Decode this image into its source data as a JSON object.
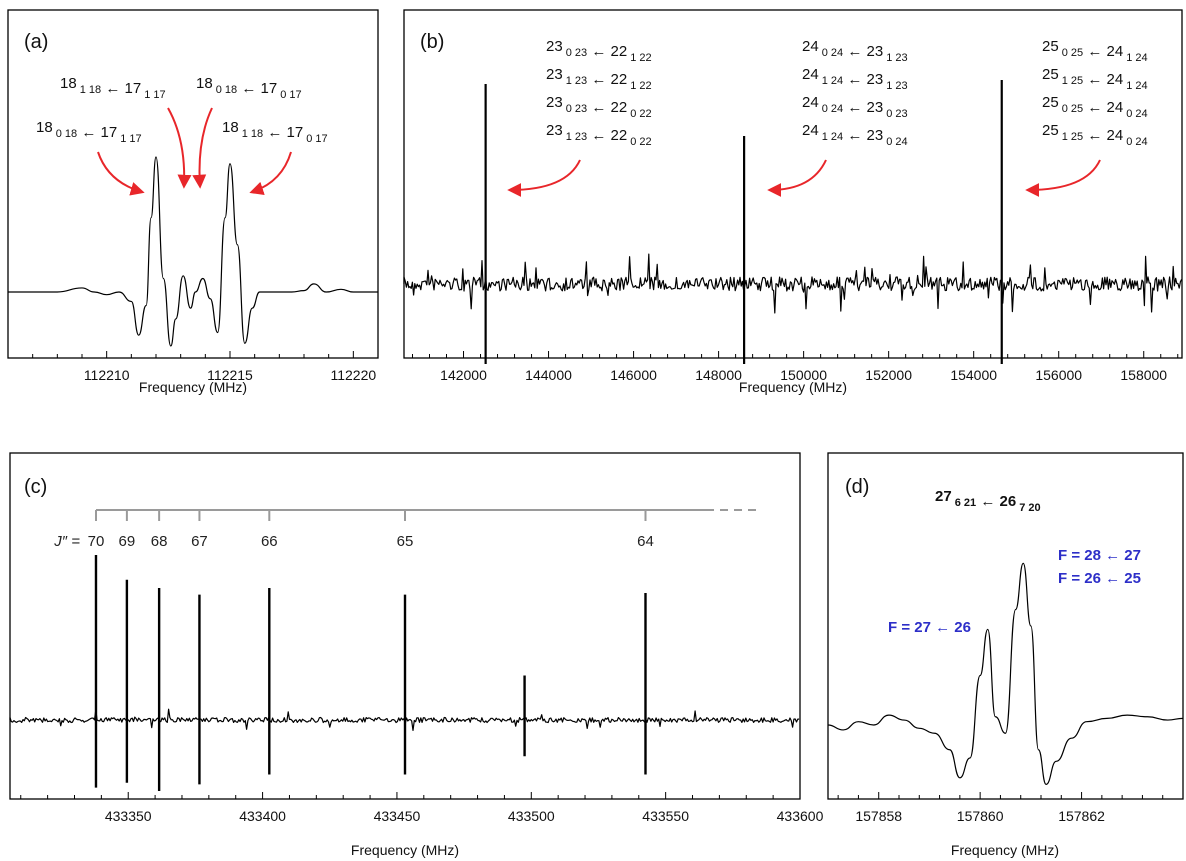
{
  "chart_data": [
    {
      "type": "line",
      "panel": "(a)",
      "xlabel": "Frequency (MHz)",
      "xlim": [
        112206,
        112221
      ],
      "xticks": [
        112210,
        112215,
        112220
      ],
      "tick_labels": [
        "112210",
        "112215",
        "112220"
      ],
      "series": [
        {
          "x": [
            112206.0,
            112208.0,
            112209.0,
            112209.5,
            112210.0,
            112210.5,
            112211.0,
            112211.3,
            112211.6,
            112211.8,
            112212.0,
            112212.3,
            112212.6,
            112212.8,
            112213.1,
            112213.4,
            112213.6,
            112213.9,
            112214.2,
            112214.5,
            112214.8,
            112215.0,
            112215.3,
            112215.6,
            112215.9,
            112216.2,
            112216.8,
            112217.5,
            112218.0,
            112218.4,
            112218.9,
            112219.5,
            112220.0,
            112221.0
          ],
          "y": [
            0.0,
            0.0,
            0.03,
            0.0,
            -0.02,
            0.0,
            -0.07,
            -0.32,
            -0.1,
            0.55,
            1.0,
            0.1,
            -0.4,
            -0.2,
            0.12,
            -0.12,
            0.0,
            0.1,
            -0.05,
            -0.3,
            0.55,
            0.95,
            0.35,
            -0.38,
            -0.12,
            0.0,
            0.0,
            0.0,
            0.01,
            0.06,
            0.0,
            0.02,
            0.0,
            0.0
          ]
        }
      ],
      "annotations": [
        {
          "lines": [
            [
              "18",
              "0 18"
            ],
            [
              "17",
              "1 17"
            ]
          ]
        },
        {
          "lines": [
            [
              "18",
              "1 18"
            ],
            [
              "17",
              "1 17"
            ]
          ]
        },
        {
          "lines": [
            [
              "18",
              "0 18"
            ],
            [
              "17",
              "0 17"
            ]
          ]
        },
        {
          "lines": [
            [
              "18",
              "1 18"
            ],
            [
              "17",
              "0 17"
            ]
          ]
        }
      ]
    },
    {
      "type": "line",
      "panel": "(b)",
      "xlabel": "Frequency (MHz)",
      "xlim": [
        140600,
        158900
      ],
      "xticks": [
        142000,
        144000,
        146000,
        148000,
        150000,
        152000,
        154000,
        156000,
        158000
      ],
      "tick_labels": [
        "142000",
        "144000",
        "146000",
        "148000",
        "150000",
        "152000",
        "154000",
        "156000",
        "158000"
      ],
      "strong_lines": [
        {
          "x": 142520,
          "up": 1.0,
          "down": -0.4
        },
        {
          "x": 148600,
          "up": 0.74,
          "down": -0.4
        },
        {
          "x": 154660,
          "up": 1.02,
          "down": -0.4
        }
      ],
      "annotation_groups": [
        {
          "lines": [
            [
              "23",
              "0 23",
              "22",
              "1 22"
            ],
            [
              "23",
              "1 23",
              "22",
              "1 22"
            ],
            [
              "23",
              "0 23",
              "22",
              "0 22"
            ],
            [
              "23",
              "1 23",
              "22",
              "0 22"
            ]
          ]
        },
        {
          "lines": [
            [
              "24",
              "0 24",
              "23",
              "1 23"
            ],
            [
              "24",
              "1 24",
              "23",
              "1 23"
            ],
            [
              "24",
              "0 24",
              "23",
              "0 23"
            ],
            [
              "24",
              "1 24",
              "23",
              "0 24"
            ]
          ]
        },
        {
          "lines": [
            [
              "25",
              "0 25",
              "24",
              "1 24"
            ],
            [
              "25",
              "1 25",
              "24",
              "1 24"
            ],
            [
              "25",
              "0 25",
              "24",
              "0 24"
            ],
            [
              "25",
              "1 25",
              "24",
              "0 24"
            ]
          ]
        }
      ]
    },
    {
      "type": "line",
      "panel": "(c)",
      "xlabel": "Frequency (MHz)",
      "xlim": [
        433306,
        433600
      ],
      "xticks": [
        433350,
        433400,
        433450,
        433500,
        433550,
        433600
      ],
      "tick_labels": [
        "433350",
        "433400",
        "433450",
        "433500",
        "433550",
        "433600"
      ],
      "j_prefix": "J″ = ",
      "ladder": [
        {
          "J": "70",
          "x": 433338.0
        },
        {
          "J": "69",
          "x": 433349.5
        },
        {
          "J": "68",
          "x": 433361.5
        },
        {
          "J": "67",
          "x": 433376.5
        },
        {
          "J": "66",
          "x": 433402.5
        },
        {
          "J": "65",
          "x": 433453.0
        },
        {
          "J": "64",
          "x": 433542.5
        }
      ],
      "ladder_end_x": 433568,
      "extra_lines": [
        {
          "x": 433497.5,
          "up": 0.27,
          "down": -0.22
        }
      ],
      "line_heights": [
        {
          "up": 1.0,
          "down": -0.41
        },
        {
          "up": 0.85,
          "down": -0.38
        },
        {
          "up": 0.8,
          "down": -0.43
        },
        {
          "up": 0.76,
          "down": -0.39
        },
        {
          "up": 0.8,
          "down": -0.33
        },
        {
          "up": 0.76,
          "down": -0.33
        },
        {
          "up": 0.77,
          "down": -0.33
        }
      ]
    },
    {
      "type": "line",
      "panel": "(d)",
      "xlabel": "Frequency (MHz)",
      "xlim": [
        157857,
        157864
      ],
      "xticks": [
        157858,
        157860,
        157862
      ],
      "tick_labels": [
        "157858",
        "157860",
        "157862"
      ],
      "title_parts": [
        "27",
        "6 21",
        "26",
        "7 20"
      ],
      "labels_blue": [
        {
          "text": "F = 28 ← 27"
        },
        {
          "text": "F = 26 ← 25"
        },
        {
          "text": "F = 27 ← 26"
        }
      ],
      "series": [
        {
          "x": [
            157857.0,
            157857.3,
            157857.6,
            157857.9,
            157858.2,
            157858.5,
            157858.8,
            157859.1,
            157859.4,
            157859.6,
            157859.8,
            157860.0,
            157860.15,
            157860.3,
            157860.5,
            157860.7,
            157860.85,
            157861.0,
            157861.15,
            157861.3,
            157861.5,
            157861.8,
            157862.1,
            157862.5,
            157862.9,
            157863.3,
            157863.7,
            157864.0
          ],
          "y": [
            0.0,
            -0.03,
            0.02,
            0.0,
            0.06,
            0.03,
            -0.02,
            -0.05,
            -0.15,
            -0.32,
            -0.2,
            0.3,
            0.58,
            0.05,
            -0.05,
            0.7,
            0.98,
            0.6,
            -0.15,
            -0.36,
            -0.22,
            -0.08,
            0.02,
            0.04,
            0.06,
            0.05,
            0.03,
            0.04
          ]
        }
      ]
    }
  ]
}
